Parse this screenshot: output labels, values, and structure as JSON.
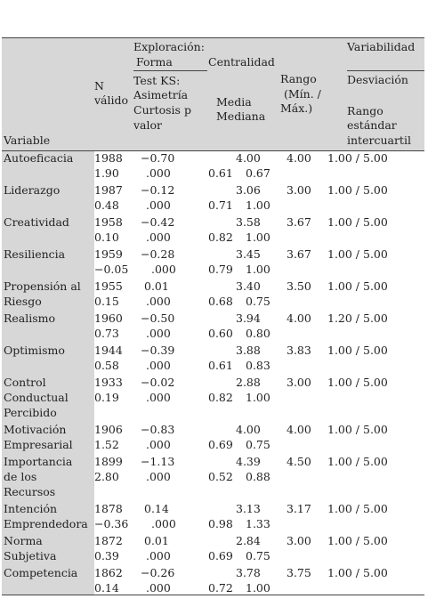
{
  "header": {
    "variable": "Variable",
    "n_valido_1": "N",
    "n_valido_2": "válido",
    "exploracion": "Exploración:",
    "forma": "Forma",
    "test_ks": "Test KS:",
    "asimetria": "Asimetría",
    "curtosis": "Curtosis p",
    "valor": "valor",
    "centralidad": "Centralidad",
    "media": "Media",
    "mediana": "Mediana",
    "rango_1": "Rango",
    "rango_2": "(Mín. /",
    "rango_3": "Máx.)",
    "variabilidad": "Variabilidad",
    "desviacion": "Desviación",
    "rango_estandar_1": "Rango",
    "rango_estandar_2": "estándar",
    "rango_estandar_3": "intercuartil"
  },
  "rows": [
    {
      "name": [
        "Autoeficacia"
      ],
      "n": "1988",
      "asym": "−0.70",
      "media": "4.00",
      "rango": "4.00",
      "minmax": "1.00 / 5.00",
      "sd": "1.90",
      "p": ".000",
      "q1": "0.61",
      "q3": "0.67"
    },
    {
      "name": [
        "Liderazgo"
      ],
      "n": "1987",
      "asym": "−0.12",
      "media": "3.06",
      "rango": "3.00",
      "minmax": "1.00 / 5.00",
      "sd": "0.48",
      "p": ".000",
      "q1": "0.71",
      "q3": "1.00"
    },
    {
      "name": [
        "Creatividad"
      ],
      "n": "1958",
      "asym": "−0.42",
      "media": "3.58",
      "rango": "3.67",
      "minmax": "1.00 / 5.00",
      "sd": "0.10",
      "p": ".000",
      "q1": "0.82",
      "q3": "1.00"
    },
    {
      "name": [
        "Resiliencia"
      ],
      "n": "1959",
      "asym": "−0.28",
      "media": "3.45",
      "rango": "3.67",
      "minmax": "1.00 / 5.00",
      "sd": "−0.05",
      "p": ".000",
      "q1": "0.79",
      "q3": "1.00"
    },
    {
      "name": [
        "Propensión al",
        "Riesgo"
      ],
      "n": "1955",
      "asym": "0.01",
      "media": "3.40",
      "rango": "3.50",
      "minmax": "1.00 / 5.00",
      "sd": "0.15",
      "p": ".000",
      "q1": "0.68",
      "q3": "0.75"
    },
    {
      "name": [
        "Realismo"
      ],
      "n": "1960",
      "asym": "−0.50",
      "media": "3.94",
      "rango": "4.00",
      "minmax": "1.20 / 5.00",
      "sd": "0.73",
      "p": ".000",
      "q1": "0.60",
      "q3": "0.80"
    },
    {
      "name": [
        "Optimismo"
      ],
      "n": "1944",
      "asym": "−0.39",
      "media": "3.88",
      "rango": "3.83",
      "minmax": "1.00 / 5.00",
      "sd": "0.58",
      "p": ".000",
      "q1": "0.61",
      "q3": "0.83"
    },
    {
      "name": [
        "Control",
        "Conductual",
        "Percibido"
      ],
      "n": "1933",
      "asym": "−0.02",
      "media": "2.88",
      "rango": "3.00",
      "minmax": "1.00 / 5.00",
      "sd": "0.19",
      "p": ".000",
      "q1": "0.82",
      "q3": "1.00"
    },
    {
      "name": [
        "Motivación",
        "Empresarial"
      ],
      "n": "1906",
      "asym": "−0.83",
      "media": "4.00",
      "rango": "4.00",
      "minmax": "1.00 / 5.00",
      "sd": "1.52",
      "p": ".000",
      "q1": "0.69",
      "q3": "0.75"
    },
    {
      "name": [
        "Importancia",
        "de los",
        "Recursos"
      ],
      "n": "1899",
      "asym": "−1.13",
      "media": "4.39",
      "rango": "4.50",
      "minmax": "1.00 / 5.00",
      "sd": "2.80",
      "p": ".000",
      "q1": "0.52",
      "q3": "0.88"
    },
    {
      "name": [
        "Intención",
        "Emprendedora"
      ],
      "n": "1878",
      "asym": "0.14",
      "media": "3.13",
      "rango": "3.17",
      "minmax": "1.00 / 5.00",
      "sd": "−0.36",
      "p": ".000",
      "q1": "0.98",
      "q3": "1.33"
    },
    {
      "name": [
        "Norma",
        "Subjetiva"
      ],
      "n": "1872",
      "asym": "0.01",
      "media": "2.84",
      "rango": "3.00",
      "minmax": "1.00 / 5.00",
      "sd": "0.39",
      "p": ".000",
      "q1": "0.69",
      "q3": "0.75"
    },
    {
      "name": [
        "Competencia"
      ],
      "n": "1862",
      "asym": "−0.26",
      "media": "3.78",
      "rango": "3.75",
      "minmax": "1.00 / 5.00",
      "sd": "0.14",
      "p": ".000",
      "q1": "0.72",
      "q3": "1.00"
    }
  ]
}
